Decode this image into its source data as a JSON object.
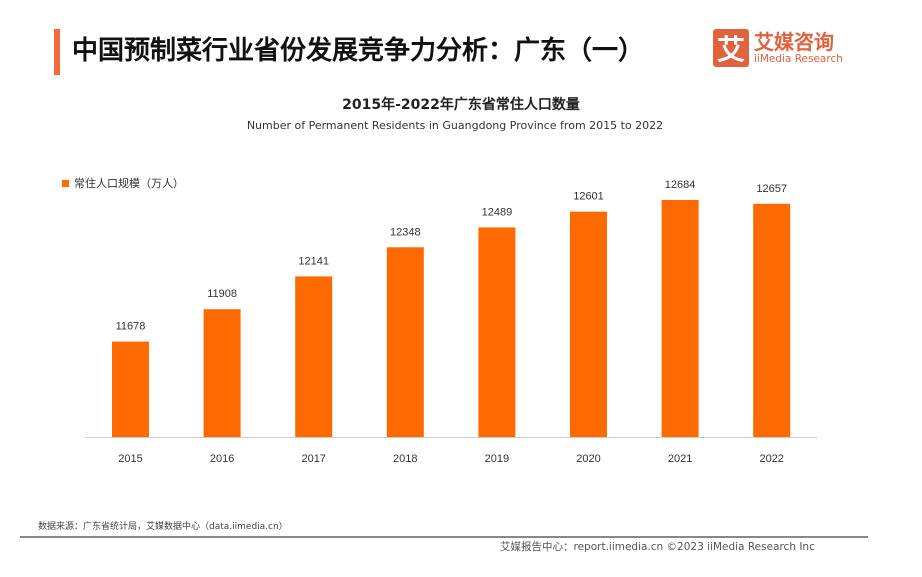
{
  "header": {
    "title": "中国预制菜行业省份发展竞争力分析：广东（一）",
    "logo_mark": "艾",
    "logo_cn": "艾媒咨询",
    "logo_en": "iiMedia Research"
  },
  "chart_data": {
    "type": "bar",
    "title": "2015年-2022年广东省常住人口数量",
    "subtitle": "Number of Permanent Residents in Guangdong Province from 2015 to 2022",
    "categories": [
      "2015",
      "2016",
      "2017",
      "2018",
      "2019",
      "2020",
      "2021",
      "2022"
    ],
    "series": [
      {
        "name": "常住人口规模（万人）",
        "values": [
          11678,
          11908,
          12141,
          12348,
          12489,
          12601,
          12684,
          12657
        ],
        "color": "#ff6a00"
      }
    ],
    "ylim": [
      11000,
      12800
    ],
    "grid": false,
    "legend": "top-left",
    "data_labels": true
  },
  "footer": {
    "source": "数据来源：广东省统计局，艾媒数据中心（data.iimedia.cn）",
    "credit": "艾媒报告中心：report.iimedia.cn   ©2023  iiMedia Research  Inc"
  }
}
